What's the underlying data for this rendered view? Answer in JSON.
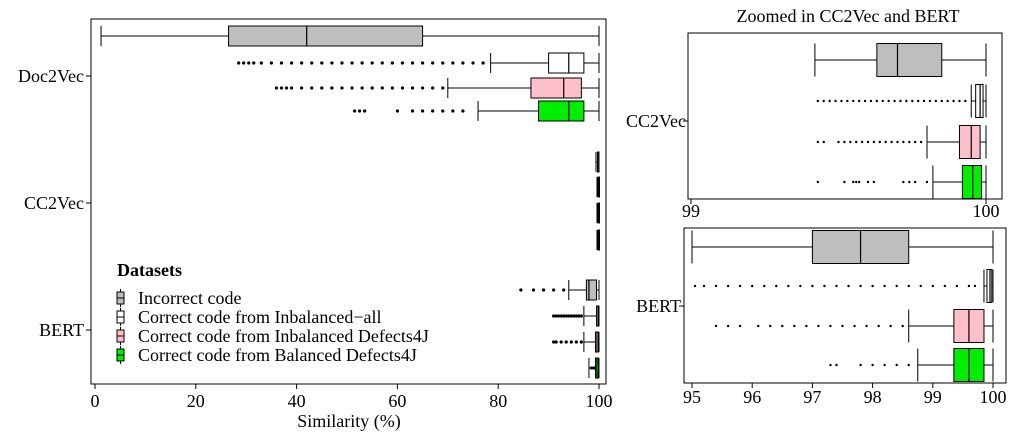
{
  "chart_data": [
    {
      "type": "boxplot",
      "title": "",
      "xlabel": "Similarity (%)",
      "ylabel": "",
      "xlim": [
        0,
        100
      ],
      "xticks": [
        0,
        20,
        40,
        60,
        80,
        100
      ],
      "groups": [
        "Doc2Vec",
        "CC2Vec",
        "BERT"
      ],
      "legend": {
        "title": "Datasets",
        "placement": "bottom-left",
        "entries": [
          {
            "name": "Incorrect code",
            "color": "#bebebe"
          },
          {
            "name": "Correct code from Inbalanced−all",
            "color": "#ffffff"
          },
          {
            "name": "Correct code from Inbalanced Defects4J",
            "color": "#ffc0cb"
          },
          {
            "name": "Correct code from Balanced Defects4J",
            "color": "#00ee00"
          }
        ]
      },
      "boxes": [
        {
          "group": "Doc2Vec",
          "series": 0,
          "min": 1.2,
          "q1": 26.5,
          "median": 42,
          "q3": 65,
          "max": 100,
          "outliers": []
        },
        {
          "group": "Doc2Vec",
          "series": 1,
          "min": 78.5,
          "q1": 90,
          "median": 94,
          "q3": 97,
          "max": 100,
          "outliers": [
            28.5,
            29.5,
            30.5,
            31.5,
            33,
            35,
            37,
            39,
            41,
            43,
            45,
            47,
            49,
            51,
            53,
            55,
            57,
            59,
            61,
            63,
            65,
            67,
            69,
            71,
            73,
            75,
            77
          ]
        },
        {
          "group": "Doc2Vec",
          "series": 2,
          "min": 70,
          "q1": 86.5,
          "median": 93,
          "q3": 96.5,
          "max": 100,
          "outliers": [
            36,
            37,
            38,
            39,
            41,
            43,
            45,
            47,
            49,
            51,
            53,
            55,
            57,
            59,
            61,
            63,
            65,
            67,
            69
          ]
        },
        {
          "group": "Doc2Vec",
          "series": 3,
          "min": 76,
          "q1": 88,
          "median": 94,
          "q3": 97,
          "max": 100,
          "outliers": [
            51.5,
            52.5,
            53.5,
            60,
            63,
            65,
            67,
            69,
            71,
            73
          ]
        },
        {
          "group": "CC2Vec",
          "series": 0,
          "min": 99.4,
          "q1": 99.7,
          "median": 99.75,
          "q3": 99.9,
          "max": 100,
          "outliers": []
        },
        {
          "group": "CC2Vec",
          "series": 1,
          "min": 99.6,
          "q1": 99.8,
          "median": 99.9,
          "q3": 100,
          "max": 100,
          "outliers": []
        },
        {
          "group": "CC2Vec",
          "series": 2,
          "min": 99.6,
          "q1": 99.8,
          "median": 99.9,
          "q3": 100,
          "max": 100,
          "outliers": []
        },
        {
          "group": "CC2Vec",
          "series": 3,
          "min": 99.6,
          "q1": 99.8,
          "median": 99.9,
          "q3": 100,
          "max": 100,
          "outliers": []
        },
        {
          "group": "BERT",
          "series": 0,
          "min": 94,
          "q1": 97.5,
          "median": 98,
          "q3": 99.5,
          "max": 100,
          "outliers": [
            84.5,
            87,
            89,
            91,
            93
          ]
        },
        {
          "group": "BERT",
          "series": 1,
          "min": 97,
          "q1": 99.5,
          "median": 99.8,
          "q3": 100,
          "max": 100,
          "outliers": [
            91,
            91.5,
            92,
            92.5,
            93,
            93.5,
            94,
            94.5,
            95,
            95.5,
            96,
            96.5
          ]
        },
        {
          "group": "BERT",
          "series": 2,
          "min": 97,
          "q1": 99.3,
          "median": 99.6,
          "q3": 99.9,
          "max": 100,
          "outliers": [
            91,
            91.5,
            92.5,
            93.5,
            94.5,
            95.5,
            96.5
          ]
        },
        {
          "group": "BERT",
          "series": 3,
          "min": 98,
          "q1": 99.3,
          "median": 99.6,
          "q3": 99.9,
          "max": 100,
          "outliers": [
            98.5,
            99
          ]
        }
      ]
    },
    {
      "type": "boxplot",
      "title": "Zoomed in CC2Vec and BERT",
      "xlabel": "",
      "ylabel": "",
      "xlim": [
        99,
        100
      ],
      "xticks": [
        99,
        100
      ],
      "groups": [
        "CC2Vec"
      ],
      "boxes": [
        {
          "series": 0,
          "min": 99.42,
          "q1": 99.63,
          "median": 99.7,
          "q3": 99.85,
          "max": 100,
          "outliers": []
        },
        {
          "series": 1,
          "min": 99.95,
          "q1": 99.965,
          "median": 99.98,
          "q3": 99.99,
          "max": 100,
          "outliers": [
            99.43,
            99.45,
            99.47,
            99.49,
            99.51,
            99.53,
            99.55,
            99.57,
            99.59,
            99.61,
            99.63,
            99.65,
            99.67,
            99.69,
            99.71,
            99.73,
            99.75,
            99.77,
            99.79,
            99.81,
            99.83,
            99.85,
            99.87,
            99.89,
            99.91,
            99.93
          ]
        },
        {
          "series": 2,
          "min": 99.8,
          "q1": 99.91,
          "median": 99.95,
          "q3": 99.98,
          "max": 100,
          "outliers": [
            99.43,
            99.45,
            99.5,
            99.52,
            99.54,
            99.56,
            99.58,
            99.6,
            99.62,
            99.64,
            99.66,
            99.68,
            99.7,
            99.72,
            99.74,
            99.76,
            99.78
          ]
        },
        {
          "series": 3,
          "min": 99.82,
          "q1": 99.92,
          "median": 99.955,
          "q3": 99.985,
          "max": 100,
          "outliers": [
            99.43,
            99.52,
            99.55,
            99.56,
            99.57,
            99.6,
            99.62,
            99.72,
            99.74,
            99.76,
            99.8
          ]
        }
      ]
    },
    {
      "type": "boxplot",
      "title": "",
      "xlabel": "",
      "ylabel": "",
      "xlim": [
        95,
        100
      ],
      "xticks": [
        95,
        96,
        97,
        98,
        99,
        100
      ],
      "groups": [
        "BERT"
      ],
      "boxes": [
        {
          "series": 0,
          "min": 95,
          "q1": 97,
          "median": 97.8,
          "q3": 98.6,
          "max": 100,
          "outliers": []
        },
        {
          "series": 1,
          "min": 99.85,
          "q1": 99.9,
          "median": 99.95,
          "q3": 99.98,
          "max": 100,
          "outliers": [
            95.05,
            95.2,
            95.4,
            95.6,
            95.8,
            96,
            96.2,
            96.4,
            96.6,
            96.8,
            97,
            97.2,
            97.4,
            97.6,
            97.8,
            98,
            98.2,
            98.4,
            98.6,
            98.8,
            99,
            99.2,
            99.4,
            99.6,
            99.7
          ]
        },
        {
          "series": 2,
          "min": 98.6,
          "q1": 99.35,
          "median": 99.6,
          "q3": 99.85,
          "max": 100,
          "outliers": [
            95.4,
            95.6,
            95.8,
            96.1,
            96.3,
            96.5,
            96.7,
            96.9,
            97.1,
            97.3,
            97.5,
            97.7,
            97.9,
            98.1,
            98.3,
            98.5
          ]
        },
        {
          "series": 3,
          "min": 98.75,
          "q1": 99.35,
          "median": 99.6,
          "q3": 99.85,
          "max": 100,
          "outliers": [
            97.3,
            97.4,
            97.8,
            98,
            98.2,
            98.4,
            98.6
          ]
        }
      ]
    }
  ]
}
